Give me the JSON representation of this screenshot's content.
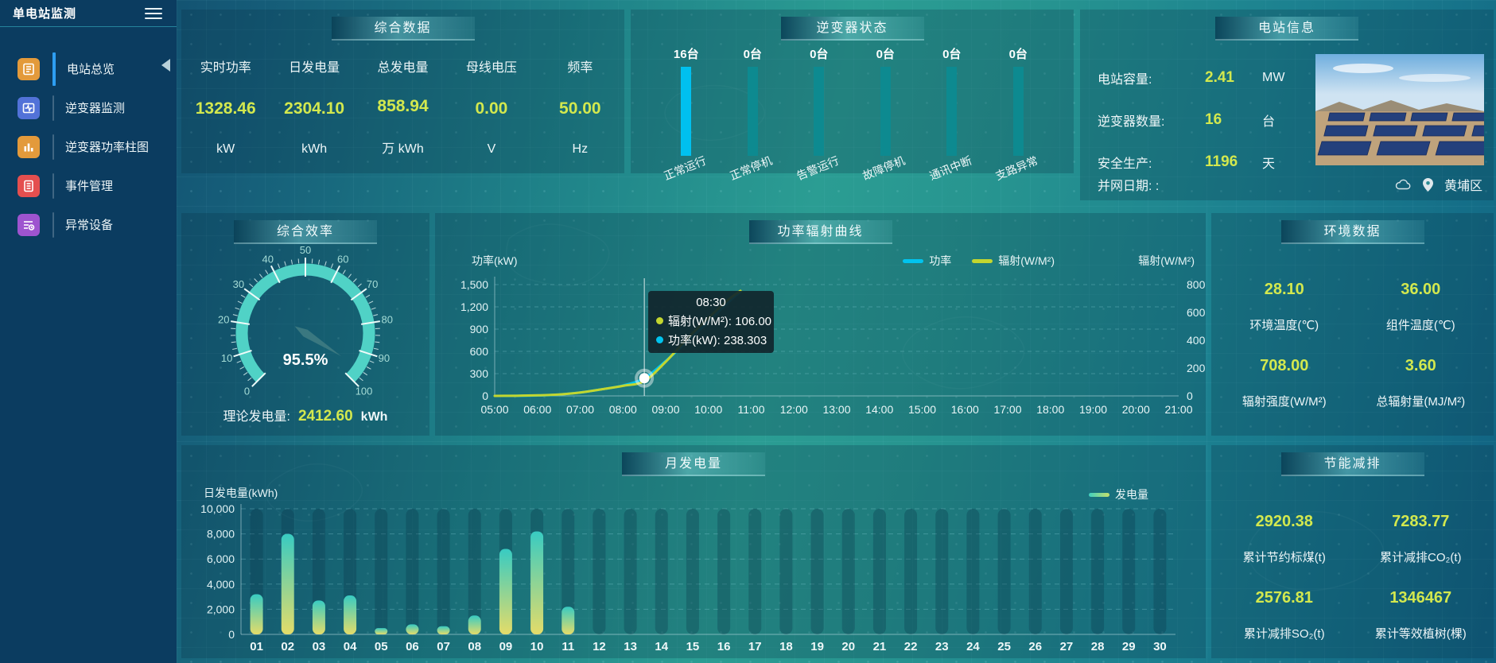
{
  "sidebar": {
    "title": "单电站监测",
    "items": [
      {
        "label": "电站总览",
        "active": true
      },
      {
        "label": "逆变器监测",
        "active": false
      },
      {
        "label": "逆变器功率柱图",
        "active": false
      },
      {
        "label": "事件管理",
        "active": false
      },
      {
        "label": "异常设备",
        "active": false
      }
    ]
  },
  "overview": {
    "title": "综合数据",
    "metrics": [
      {
        "label": "实时功率",
        "value": "1328.46",
        "unit": "kW"
      },
      {
        "label": "日发电量",
        "value": "2304.10",
        "unit": "kWh"
      },
      {
        "label": "总发电量",
        "value": "858.94",
        "unit": "万 kWh"
      },
      {
        "label": "母线电压",
        "value": "0.00",
        "unit": "V"
      },
      {
        "label": "频率",
        "value": "50.00",
        "unit": "Hz"
      }
    ]
  },
  "station_info": {
    "title": "电站信息",
    "rows": [
      {
        "label": "电站容量:",
        "value": "2.41",
        "unit": "MW"
      },
      {
        "label": "逆变器数量:",
        "value": "16",
        "unit": "台"
      },
      {
        "label": "安全生产:",
        "value": "1196",
        "unit": "天"
      },
      {
        "label": "并网日期:",
        "value": ":",
        "unit": ""
      }
    ],
    "location": "黄埔区"
  },
  "efficiency": {
    "theoretical": {
      "label": "理论发电量:",
      "value": "2412.60",
      "unit": "kWh"
    }
  },
  "environment": {
    "title": "环境数据",
    "stats": [
      {
        "value": "28.10",
        "label": "环境温度(℃)"
      },
      {
        "value": "36.00",
        "label": "组件温度(℃)"
      },
      {
        "value": "708.00",
        "label": "辐射强度(W/M²)"
      },
      {
        "value": "3.60",
        "label": "总辐射量(MJ/M²)"
      }
    ]
  },
  "saving": {
    "title": "节能减排",
    "stats": [
      {
        "value": "2920.38",
        "label": "累计节约标煤(t)"
      },
      {
        "value": "7283.77",
        "label": "累计减排CO₂(t)"
      },
      {
        "value": "2576.81",
        "label": "累计减排SO₂(t)"
      },
      {
        "value": "1346467",
        "label": "累计等效植树(棵)"
      }
    ]
  },
  "colors": {
    "value_yellow": "#d3e84e",
    "inverter_highlight": "#00c0ef",
    "inverter_normal": "#0d8a90",
    "power_line": "#00c4ef",
    "radiation_line": "#c3d62f",
    "bar_gradient_top": "#38cbc2",
    "bar_gradient_bottom": "#e4dc69"
  },
  "chart_data": [
    {
      "id": "inverter_status",
      "type": "bar",
      "title": "逆变器状态",
      "categories": [
        "正常运行",
        "正常停机",
        "告警运行",
        "故障停机",
        "通讯中断",
        "支路异常"
      ],
      "values": [
        16,
        0,
        0,
        0,
        0,
        0
      ],
      "value_labels": [
        "16台",
        "0台",
        "0台",
        "0台",
        "0台",
        "0台"
      ]
    },
    {
      "id": "efficiency_gauge",
      "type": "gauge",
      "title": "综合效率",
      "value": 95.5,
      "display": "95.5%",
      "min": 0,
      "max": 100,
      "tick_step": 10
    },
    {
      "id": "power_radiation",
      "type": "line",
      "title": "功率辐射曲线",
      "x_ticks": [
        "05:00",
        "06:00",
        "07:00",
        "08:00",
        "09:00",
        "10:00",
        "11:00",
        "12:00",
        "13:00",
        "14:00",
        "15:00",
        "16:00",
        "17:00",
        "18:00",
        "19:00",
        "20:00",
        "21:00"
      ],
      "x_range_hours": [
        5,
        21
      ],
      "left_axis": {
        "title": "功率(kW)",
        "min": 0,
        "max": 1500,
        "ticks": [
          "0",
          "300",
          "600",
          "900",
          "1,200",
          "1,500"
        ]
      },
      "right_axis": {
        "title": "辐射(W/M²)",
        "min": 0,
        "max": 800,
        "ticks": [
          "0",
          "200",
          "400",
          "600",
          "800"
        ]
      },
      "series": [
        {
          "name": "功率",
          "color": "#00c4ef",
          "axis": "left",
          "points": [
            [
              5,
              0
            ],
            [
              5.5,
              1
            ],
            [
              6,
              6
            ],
            [
              6.5,
              18
            ],
            [
              7,
              45
            ],
            [
              7.5,
              88
            ],
            [
              8,
              140
            ],
            [
              8.5,
              238.303
            ],
            [
              9,
              470
            ],
            [
              9.5,
              730
            ],
            [
              10,
              1000
            ],
            [
              10.5,
              1280
            ],
            [
              10.75,
              1400
            ]
          ]
        },
        {
          "name": "辐射(W/M²)",
          "color": "#c3d62f",
          "axis": "right",
          "points": [
            [
              5,
              0
            ],
            [
              5.5,
              1
            ],
            [
              6,
              4
            ],
            [
              6.5,
              10
            ],
            [
              7,
              24
            ],
            [
              7.5,
              47
            ],
            [
              8,
              72
            ],
            [
              8.5,
              106
            ],
            [
              9,
              245
            ],
            [
              9.5,
              410
            ],
            [
              10,
              560
            ],
            [
              10.5,
              700
            ],
            [
              10.75,
              755
            ]
          ]
        }
      ],
      "crosshair_hour": 8.5,
      "tooltip": {
        "time": "08:30",
        "lines": [
          {
            "color": "#c3d62f",
            "text": "辐射(W/M²): 106.00"
          },
          {
            "color": "#00c4ef",
            "text": "功率(kW): 238.303"
          }
        ]
      }
    },
    {
      "id": "monthly_generation",
      "type": "bar",
      "title": "月发电量",
      "ylabel": "日发电量(kWh)",
      "legend": "发电量",
      "categories": [
        "01",
        "02",
        "03",
        "04",
        "05",
        "06",
        "07",
        "08",
        "09",
        "10",
        "11",
        "12",
        "13",
        "14",
        "15",
        "16",
        "17",
        "18",
        "19",
        "20",
        "21",
        "22",
        "23",
        "24",
        "25",
        "26",
        "27",
        "28",
        "29",
        "30"
      ],
      "values": [
        3200,
        8000,
        2700,
        3100,
        500,
        800,
        650,
        1500,
        6800,
        8200,
        2200,
        0,
        0,
        0,
        0,
        0,
        0,
        0,
        0,
        0,
        0,
        0,
        0,
        0,
        0,
        0,
        0,
        0,
        0,
        0
      ],
      "ymax": 10000,
      "yticks": [
        "0",
        "2,000",
        "4,000",
        "6,000",
        "8,000",
        "10,000"
      ]
    }
  ]
}
